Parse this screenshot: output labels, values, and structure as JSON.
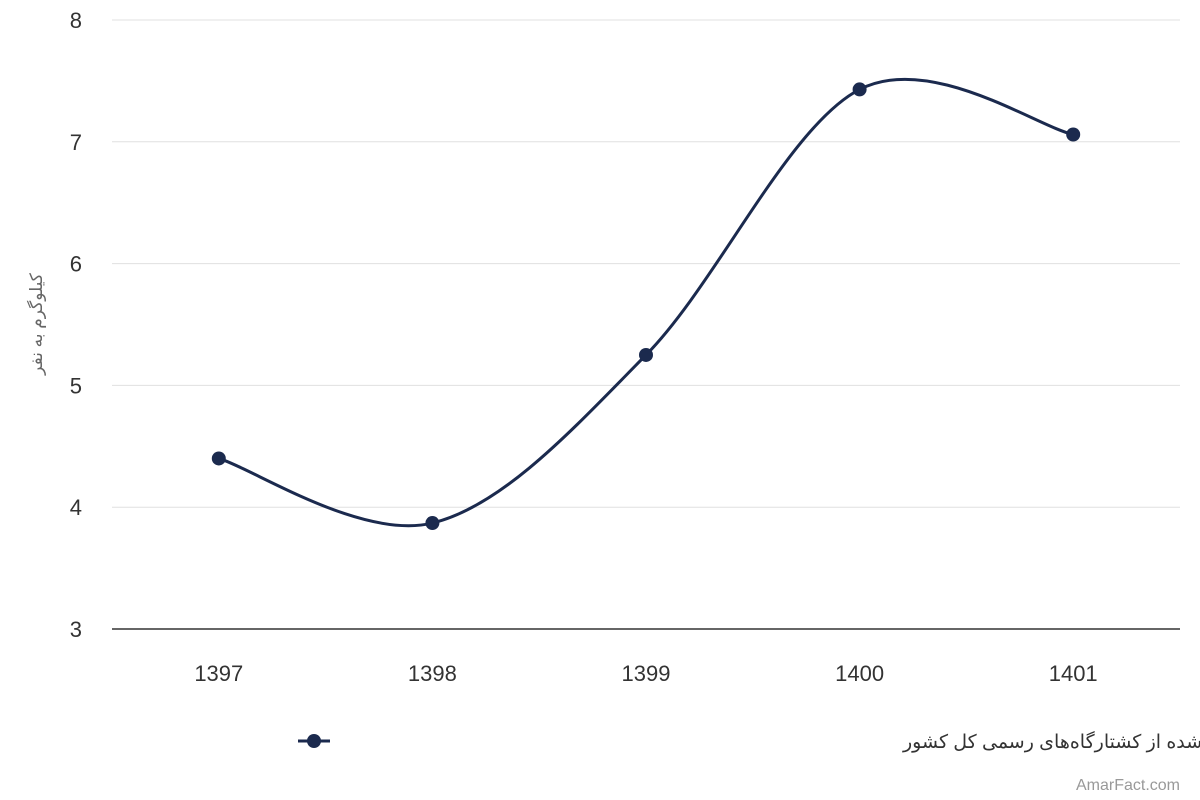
{
  "chart_data": {
    "type": "line",
    "title": "",
    "xlabel": "",
    "ylabel": "کیلوگرم به نفر",
    "categories": [
      "1397",
      "1398",
      "1399",
      "1400",
      "1401"
    ],
    "series": [
      {
        "name": "سرانه تولید گوشت قرمز تولید شده از کشتارگاه‌های رسمی کل کشور",
        "values": [
          4.4,
          3.87,
          5.25,
          7.43,
          7.06
        ],
        "color": "#1b2a4e"
      }
    ],
    "ylim": [
      3,
      8
    ],
    "yticks": [
      "3",
      "4",
      "5",
      "6",
      "7",
      "8"
    ],
    "grid": true,
    "legend": "bottom-center",
    "smooth": true
  },
  "credit": "AmarFact.com"
}
